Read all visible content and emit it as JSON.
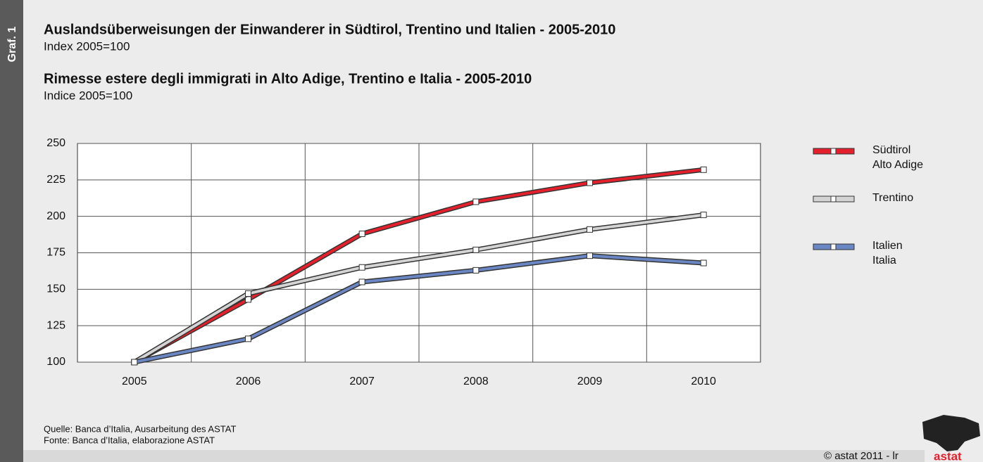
{
  "chart_data": {
    "type": "line",
    "side_label": "Graf. 1",
    "title": "Auslandsüberweisungen der Einwanderer in Südtirol, Trentino und Italien - 2005-2010",
    "subtitle": "Index 2005=100",
    "title2": "Rimesse estere degli immigrati in Alto Adige, Trentino e Italia - 2005-2010",
    "subtitle2": "Indice 2005=100",
    "categories": [
      "2005",
      "2006",
      "2007",
      "2008",
      "2009",
      "2010"
    ],
    "series": [
      {
        "name": "Südtirol\nAlto Adige",
        "color": "#e3202c",
        "values": [
          100,
          143,
          188,
          210,
          223,
          232
        ]
      },
      {
        "name": "Trentino",
        "color": "#d4d4d4",
        "values": [
          100,
          147,
          165,
          177,
          191,
          201
        ]
      },
      {
        "name": "Italien\nItalia",
        "color": "#6a87c4",
        "values": [
          100,
          116,
          155,
          163,
          173,
          168
        ]
      }
    ],
    "ylim": [
      100,
      250
    ],
    "yticks": [
      100,
      125,
      150,
      175,
      200,
      225,
      250
    ],
    "grid": true,
    "source": "Quelle: Banca d’Italia, Ausarbeitung des ASTAT",
    "source2": "Fonte: Banca d’Italia, elaborazione ASTAT",
    "copyright": "©  astat 2011 - lr",
    "logo": "astat"
  }
}
